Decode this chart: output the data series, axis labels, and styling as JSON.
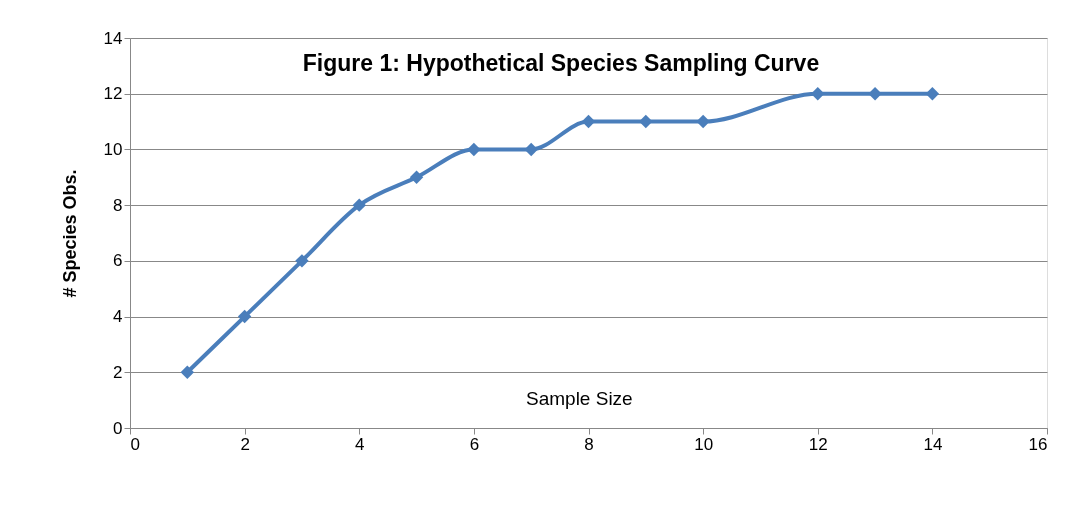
{
  "chart_data": {
    "type": "line",
    "title": "Figure 1: Hypothetical Species Sampling  Curve",
    "xlabel": "Sample Size",
    "ylabel": "# Species Obs.",
    "x": [
      1,
      2,
      3,
      4,
      5,
      6,
      7,
      8,
      9,
      10,
      12,
      13,
      14
    ],
    "series": [
      {
        "color": "#4a7ebb",
        "values": [
          2,
          4,
          6,
          8,
          9,
          10,
          10,
          11,
          11,
          11,
          12,
          12,
          12
        ]
      }
    ],
    "xlim": [
      0,
      16
    ],
    "xticks": [
      0,
      2,
      4,
      6,
      8,
      10,
      12,
      14,
      16
    ],
    "ylim": [
      0,
      14
    ],
    "yticks": [
      0,
      2,
      4,
      6,
      8,
      10,
      12,
      14
    ],
    "grid": "y",
    "marker": "diamond",
    "line_style": "solid"
  }
}
